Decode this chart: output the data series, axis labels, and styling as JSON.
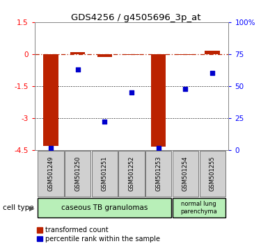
{
  "title": "GDS4256 / g4505696_3p_at",
  "samples": [
    "GSM501249",
    "GSM501250",
    "GSM501251",
    "GSM501252",
    "GSM501253",
    "GSM501254",
    "GSM501255"
  ],
  "transformed_count": [
    -4.3,
    0.1,
    -0.15,
    -0.05,
    -4.35,
    -0.05,
    0.15
  ],
  "percentile_rank": [
    1.5,
    63,
    22,
    45,
    1.5,
    48,
    60
  ],
  "ylim_left": [
    -4.5,
    1.5
  ],
  "ylim_right": [
    0,
    100
  ],
  "yticks_left": [
    1.5,
    0,
    -1.5,
    -3,
    -4.5
  ],
  "yticks_right": [
    100,
    75,
    50,
    25,
    0
  ],
  "ytick_labels_left": [
    "1.5",
    "0",
    "-1.5",
    "-3",
    "-4.5"
  ],
  "ytick_labels_right": [
    "100%",
    "75",
    "50",
    "25",
    "0"
  ],
  "bar_color": "#bb2200",
  "dot_color": "#0000cc",
  "bar_width": 0.55,
  "background_color": "#ffffff",
  "legend_red_label": "transformed count",
  "legend_blue_label": "percentile rank within the sample",
  "cell_type_label": "cell type",
  "grp1_label": "caseous TB granulomas",
  "grp2_label": "normal lung\nparenchyma",
  "group_color": "#b8efb8"
}
